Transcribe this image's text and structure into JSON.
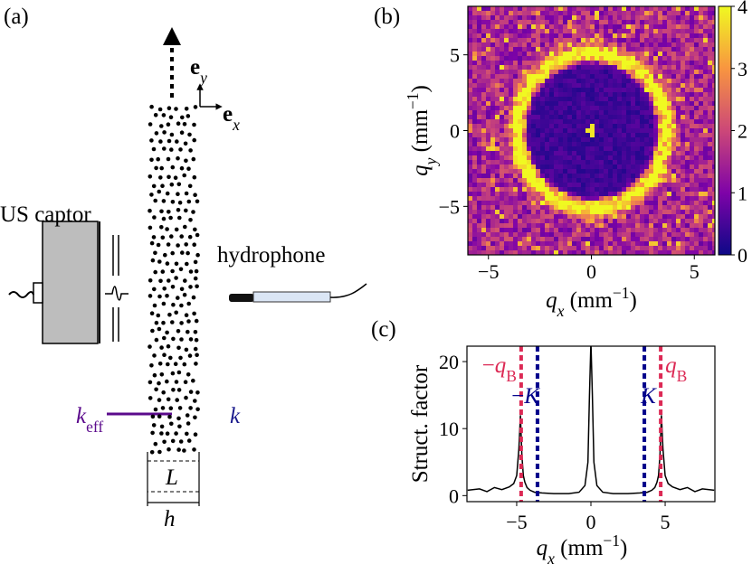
{
  "panel_a": {
    "label": "(a)",
    "ey": [
      {
        "text": "e",
        "style": "bold"
      },
      {
        "text": "y",
        "style": "sub-italic"
      }
    ],
    "ex": [
      {
        "text": "e",
        "style": "bold"
      },
      {
        "text": "x",
        "style": "sub-italic"
      }
    ],
    "us_captor": "US captor",
    "hydrophone": "hydrophone",
    "keff": [
      {
        "text": "k",
        "style": "italic"
      },
      {
        "text": "eff",
        "style": "sub"
      }
    ],
    "k": "k",
    "L": "L",
    "h": "h"
  },
  "chart_data": [
    {
      "type": "heatmap",
      "panel_label": "(b)",
      "xlabel": [
        {
          "text": "q",
          "style": "italic"
        },
        {
          "text": "x",
          "style": "sub-italic"
        },
        {
          "text": " (mm"
        },
        {
          "text": "−1",
          "style": "sup"
        },
        {
          "text": ")"
        }
      ],
      "ylabel": [
        {
          "text": "q",
          "style": "italic"
        },
        {
          "text": "y",
          "style": "sub-italic"
        },
        {
          "text": " (mm"
        },
        {
          "text": "−1",
          "style": "sup"
        },
        {
          "text": ")"
        }
      ],
      "xlim": [
        -6,
        6
      ],
      "ylim": [
        -8.2,
        8.2
      ],
      "xticks": [
        {
          "value": -5,
          "label": "−5"
        },
        0,
        5
      ],
      "yticks": [
        {
          "value": -5,
          "label": "−5"
        },
        0,
        5
      ],
      "colormap": "plasma",
      "colorbar": {
        "lim": [
          0,
          4
        ],
        "ticks": [
          0,
          1,
          2,
          3,
          4
        ]
      }
    },
    {
      "type": "line",
      "panel_label": "(c)",
      "xlabel": [
        {
          "text": "q",
          "style": "italic"
        },
        {
          "text": "x",
          "style": "sub-italic"
        },
        {
          "text": " (mm"
        },
        {
          "text": "−1",
          "style": "sup"
        },
        {
          "text": ")"
        }
      ],
      "ylabel": "Struct. factor",
      "xlim": [
        -8.35,
        8.35
      ],
      "ylim": [
        -0.9,
        22.3
      ],
      "xticks": [
        {
          "value": -5,
          "label": "−5"
        },
        0,
        5
      ],
      "yticks": [
        0,
        10,
        20
      ],
      "x": [
        -8.3,
        -7.5,
        -7,
        -6.5,
        -6,
        -5.5,
        -5.2,
        -5.0,
        -4.85,
        -4.75,
        -4.65,
        -4.55,
        -4.45,
        -4.3,
        -4.1,
        -3.8,
        -3.3,
        -2.5,
        -1.5,
        -0.8,
        -0.4,
        -0.2,
        -0.1,
        0,
        0.1,
        0.2,
        0.4,
        0.8,
        1.5,
        2.5,
        3.3,
        3.8,
        4.1,
        4.3,
        4.45,
        4.55,
        4.65,
        4.75,
        4.85,
        5.0,
        5.2,
        5.5,
        6,
        6.5,
        7,
        7.5,
        8.3
      ],
      "series": [
        {
          "color": "#000000",
          "values": [
            0.8,
            1.0,
            0.6,
            1.2,
            0.9,
            1.3,
            1.8,
            3,
            7,
            12,
            6,
            3,
            2,
            1.2,
            0.8,
            0.5,
            0.4,
            0.3,
            0.3,
            0.5,
            1.5,
            5,
            15,
            23,
            15,
            5,
            1.5,
            0.5,
            0.3,
            0.3,
            0.4,
            0.5,
            0.8,
            1.2,
            2,
            3,
            6,
            12,
            7,
            3,
            1.8,
            1.3,
            0.9,
            1.2,
            0.6,
            1.0,
            0.8
          ]
        }
      ],
      "vlines": [
        {
          "value": -4.7,
          "color": "#dc2a55",
          "label": [
            {
              "text": "−"
            },
            {
              "text": "q",
              "style": "italic"
            },
            {
              "text": "B",
              "style": "sub"
            }
          ]
        },
        {
          "value": -3.6,
          "color": "#00008b",
          "label": [
            {
              "text": "−"
            },
            {
              "text": "K",
              "style": "italic"
            }
          ]
        },
        {
          "value": 3.6,
          "color": "#00008b",
          "label": [
            {
              "text": "K",
              "style": "italic"
            }
          ]
        },
        {
          "value": 4.7,
          "color": "#dc2a55",
          "label": [
            {
              "text": "q",
              "style": "italic"
            },
            {
              "text": "B",
              "style": "sub"
            }
          ]
        }
      ]
    }
  ]
}
